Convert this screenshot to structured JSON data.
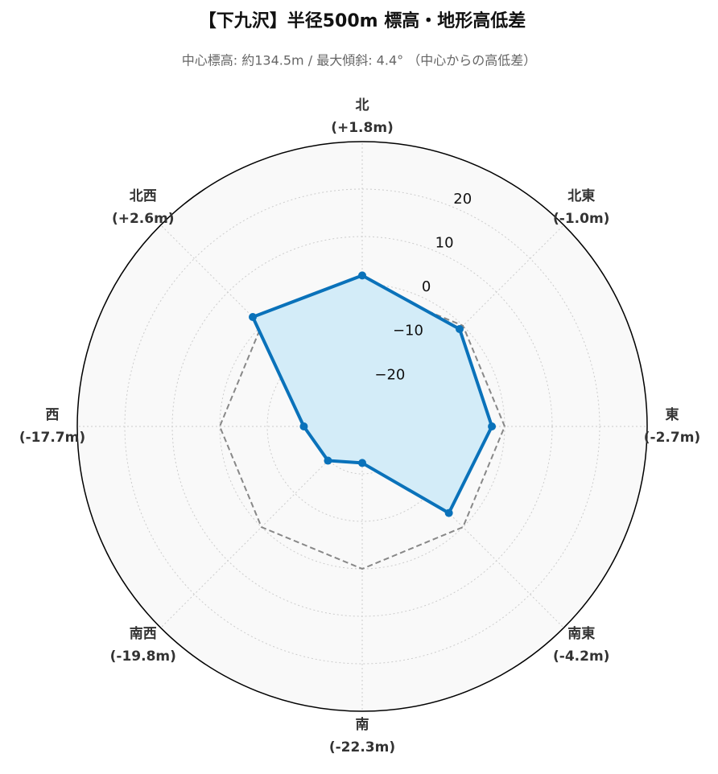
{
  "chart_data": {
    "type": "radar",
    "title": "【下九沢】半径500m 標高・地形高低差",
    "subtitle": "中心標高: 約134.5m / 最大傾斜: 4.4° （中心からの高低差）",
    "categories": [
      "北",
      "北東",
      "東",
      "南東",
      "南",
      "南西",
      "西",
      "北西"
    ],
    "values": [
      1.8,
      -1.0,
      -2.7,
      -4.2,
      -22.3,
      -19.8,
      -17.7,
      2.6
    ],
    "value_labels": [
      "(+1.8m)",
      "(-1.0m)",
      "(-2.7m)",
      "(-4.2m)",
      "(-22.3m)",
      "(-19.8m)",
      "(-17.7m)",
      "(+2.6m)"
    ],
    "color": "#0a72ba",
    "fill_color": "#d3ecf8",
    "reference_line": 0,
    "ylim": [
      -30,
      30
    ],
    "yticks": [
      {
        "value": -20,
        "label": "−20"
      },
      {
        "value": -10,
        "label": "−10"
      },
      0,
      10,
      20
    ],
    "grid": true
  }
}
